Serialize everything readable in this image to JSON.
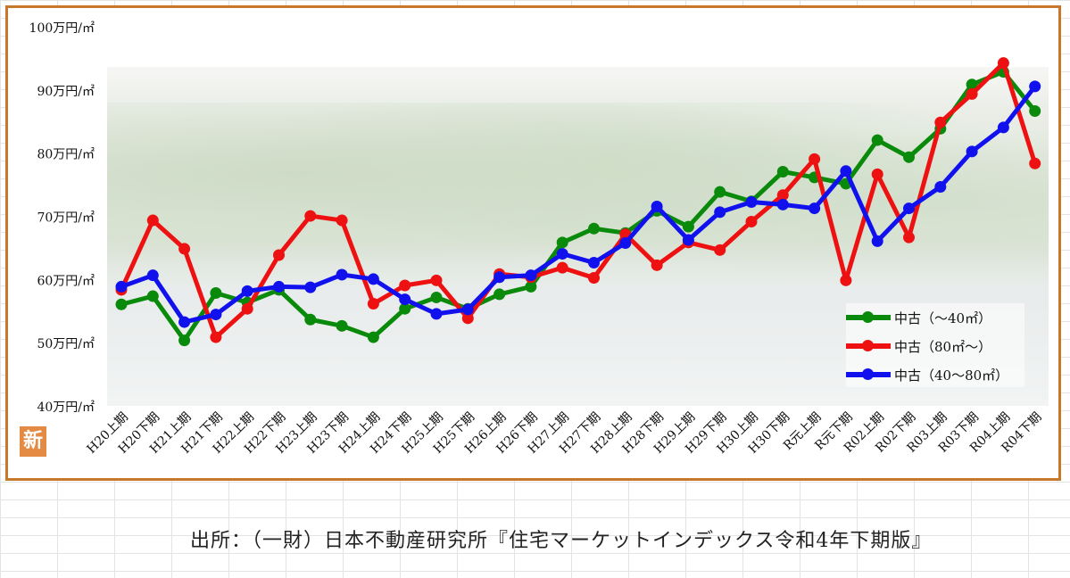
{
  "source": "出所：（一財）日本不動産研究所『住宅マーケットインデックス令和4年下期版』",
  "badge": "新",
  "colors": {
    "frame": "#c8782a",
    "green": "#0a8a0a",
    "red": "#ee1111",
    "blue": "#1111ee"
  },
  "chart_data": {
    "type": "line",
    "ylim": [
      40,
      100
    ],
    "y_ticks": [
      "40万円/㎡",
      "50万円/㎡",
      "60万円/㎡",
      "70万円/㎡",
      "80万円/㎡",
      "90万円/㎡",
      "100万円/㎡"
    ],
    "categories": [
      "H20上期",
      "H20下期",
      "H21上期",
      "H21下期",
      "H22上期",
      "H22下期",
      "H23上期",
      "H23下期",
      "H24上期",
      "H24下期",
      "H25上期",
      "H25下期",
      "H26上期",
      "H26下期",
      "H27上期",
      "H27下期",
      "H28上期",
      "H28下期",
      "H29上期",
      "H29下期",
      "H30上期",
      "H30下期",
      "R元上期",
      "R元下期",
      "R02上期",
      "R02下期",
      "R03上期",
      "R03下期",
      "R04上期",
      "R04下期"
    ],
    "series": [
      {
        "name": "中古（～40㎡）",
        "color": "#0a8a0a",
        "values": [
          56.2,
          57.5,
          50.5,
          58.0,
          56.5,
          58.5,
          53.8,
          52.8,
          51.0,
          55.5,
          57.3,
          55.5,
          57.8,
          59.0,
          66.0,
          68.2,
          67.5,
          71.0,
          68.5,
          74.0,
          72.5,
          77.2,
          76.3,
          75.3,
          82.2,
          79.5,
          84.0,
          91.0,
          93.0,
          86.8
        ]
      },
      {
        "name": "中古（80㎡～）",
        "color": "#ee1111",
        "values": [
          58.5,
          69.5,
          65.0,
          51.0,
          55.5,
          64.0,
          70.2,
          69.5,
          56.3,
          59.2,
          60.0,
          54.0,
          61.0,
          60.5,
          62.0,
          60.4,
          67.3,
          62.4,
          66.0,
          64.8,
          69.3,
          73.5,
          79.2,
          60.0,
          76.8,
          66.8,
          85.0,
          89.5,
          94.4,
          78.5
        ]
      },
      {
        "name": "中古（40～80㎡）",
        "color": "#1111ee",
        "values": [
          59.0,
          60.8,
          53.4,
          54.6,
          58.3,
          59.0,
          58.9,
          60.9,
          60.2,
          57.0,
          54.7,
          55.4,
          60.5,
          60.8,
          64.2,
          62.8,
          65.9,
          71.7,
          66.4,
          70.8,
          72.4,
          72.0,
          71.4,
          77.3,
          66.2,
          71.4,
          74.8,
          80.4,
          84.2,
          90.7
        ]
      }
    ]
  }
}
